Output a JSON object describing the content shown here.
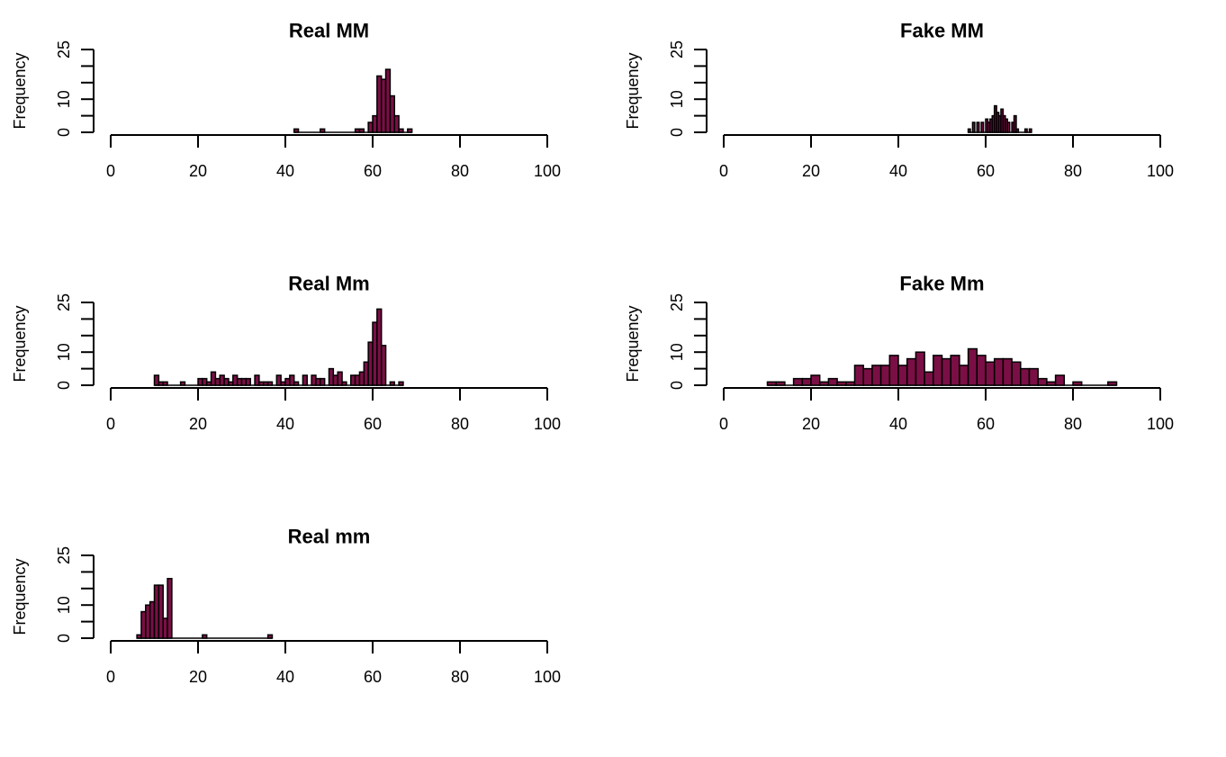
{
  "colors": {
    "bar_fill": "#7a0f45",
    "bar_stroke": "#000000",
    "axis": "#000000",
    "background": "#ffffff"
  },
  "chart_data": [
    {
      "type": "bar",
      "title": "Real MM",
      "ylabel": "Frequency",
      "xlim": [
        0,
        100
      ],
      "ylim": [
        0,
        25
      ],
      "xticks": [
        "0",
        "20",
        "40",
        "60",
        "80",
        "100"
      ],
      "yticks": [
        "0",
        "10",
        "25"
      ],
      "bin_width": 1,
      "bins": [
        {
          "x": 42,
          "y": 1
        },
        {
          "x": 48,
          "y": 1
        },
        {
          "x": 56,
          "y": 1
        },
        {
          "x": 57,
          "y": 1
        },
        {
          "x": 59,
          "y": 3
        },
        {
          "x": 60,
          "y": 5
        },
        {
          "x": 61,
          "y": 17
        },
        {
          "x": 62,
          "y": 16
        },
        {
          "x": 63,
          "y": 19
        },
        {
          "x": 64,
          "y": 11
        },
        {
          "x": 65,
          "y": 5
        },
        {
          "x": 66,
          "y": 1
        },
        {
          "x": 68,
          "y": 1
        }
      ]
    },
    {
      "type": "bar",
      "title": "Fake MM",
      "ylabel": "Frequency",
      "xlim": [
        0,
        100
      ],
      "ylim": [
        0,
        25
      ],
      "xticks": [
        "0",
        "20",
        "40",
        "60",
        "80",
        "100"
      ],
      "yticks": [
        "0",
        "10",
        "25"
      ],
      "bin_width": 0.5,
      "bins": [
        {
          "x": 56,
          "y": 1
        },
        {
          "x": 57,
          "y": 3
        },
        {
          "x": 58,
          "y": 3
        },
        {
          "x": 59,
          "y": 3
        },
        {
          "x": 60,
          "y": 4
        },
        {
          "x": 60.5,
          "y": 3
        },
        {
          "x": 61,
          "y": 4
        },
        {
          "x": 61.5,
          "y": 5
        },
        {
          "x": 62,
          "y": 8
        },
        {
          "x": 62.5,
          "y": 6
        },
        {
          "x": 63,
          "y": 5
        },
        {
          "x": 63.5,
          "y": 7
        },
        {
          "x": 64,
          "y": 5
        },
        {
          "x": 64.5,
          "y": 4
        },
        {
          "x": 65,
          "y": 3
        },
        {
          "x": 66,
          "y": 3
        },
        {
          "x": 66.5,
          "y": 5
        },
        {
          "x": 67,
          "y": 1
        },
        {
          "x": 69,
          "y": 1
        },
        {
          "x": 70,
          "y": 1
        }
      ]
    },
    {
      "type": "bar",
      "title": "Real Mm",
      "ylabel": "Frequency",
      "xlim": [
        0,
        100
      ],
      "ylim": [
        0,
        25
      ],
      "xticks": [
        "0",
        "20",
        "40",
        "60",
        "80",
        "100"
      ],
      "yticks": [
        "0",
        "10",
        "25"
      ],
      "bin_width": 1,
      "bins": [
        {
          "x": 10,
          "y": 3
        },
        {
          "x": 11,
          "y": 1
        },
        {
          "x": 12,
          "y": 1
        },
        {
          "x": 16,
          "y": 1
        },
        {
          "x": 20,
          "y": 2
        },
        {
          "x": 21,
          "y": 2
        },
        {
          "x": 22,
          "y": 1
        },
        {
          "x": 23,
          "y": 4
        },
        {
          "x": 24,
          "y": 2
        },
        {
          "x": 25,
          "y": 3
        },
        {
          "x": 26,
          "y": 2
        },
        {
          "x": 27,
          "y": 1
        },
        {
          "x": 28,
          "y": 3
        },
        {
          "x": 29,
          "y": 2
        },
        {
          "x": 30,
          "y": 2
        },
        {
          "x": 31,
          "y": 2
        },
        {
          "x": 33,
          "y": 3
        },
        {
          "x": 34,
          "y": 1
        },
        {
          "x": 35,
          "y": 1
        },
        {
          "x": 36,
          "y": 1
        },
        {
          "x": 38,
          "y": 3
        },
        {
          "x": 39,
          "y": 1
        },
        {
          "x": 40,
          "y": 2
        },
        {
          "x": 41,
          "y": 3
        },
        {
          "x": 42,
          "y": 1
        },
        {
          "x": 44,
          "y": 3
        },
        {
          "x": 46,
          "y": 3
        },
        {
          "x": 47,
          "y": 2
        },
        {
          "x": 48,
          "y": 2
        },
        {
          "x": 50,
          "y": 5
        },
        {
          "x": 51,
          "y": 3
        },
        {
          "x": 52,
          "y": 4
        },
        {
          "x": 53,
          "y": 1
        },
        {
          "x": 55,
          "y": 3
        },
        {
          "x": 56,
          "y": 3
        },
        {
          "x": 57,
          "y": 4
        },
        {
          "x": 58,
          "y": 7
        },
        {
          "x": 59,
          "y": 13
        },
        {
          "x": 60,
          "y": 19
        },
        {
          "x": 61,
          "y": 23
        },
        {
          "x": 62,
          "y": 12
        },
        {
          "x": 64,
          "y": 1
        },
        {
          "x": 66,
          "y": 1
        }
      ]
    },
    {
      "type": "bar",
      "title": "Fake Mm",
      "ylabel": "Frequency",
      "xlim": [
        0,
        100
      ],
      "ylim": [
        0,
        25
      ],
      "xticks": [
        "0",
        "20",
        "40",
        "60",
        "80",
        "100"
      ],
      "yticks": [
        "0",
        "10",
        "25"
      ],
      "bin_width": 2,
      "bins": [
        {
          "x": 10,
          "y": 1
        },
        {
          "x": 12,
          "y": 1
        },
        {
          "x": 16,
          "y": 2
        },
        {
          "x": 18,
          "y": 2
        },
        {
          "x": 20,
          "y": 3
        },
        {
          "x": 22,
          "y": 1
        },
        {
          "x": 24,
          "y": 2
        },
        {
          "x": 26,
          "y": 1
        },
        {
          "x": 28,
          "y": 1
        },
        {
          "x": 30,
          "y": 6
        },
        {
          "x": 32,
          "y": 5
        },
        {
          "x": 34,
          "y": 6
        },
        {
          "x": 36,
          "y": 6
        },
        {
          "x": 38,
          "y": 9
        },
        {
          "x": 40,
          "y": 6
        },
        {
          "x": 42,
          "y": 8
        },
        {
          "x": 44,
          "y": 10
        },
        {
          "x": 46,
          "y": 4
        },
        {
          "x": 48,
          "y": 9
        },
        {
          "x": 50,
          "y": 8
        },
        {
          "x": 52,
          "y": 9
        },
        {
          "x": 54,
          "y": 6
        },
        {
          "x": 56,
          "y": 11
        },
        {
          "x": 58,
          "y": 9
        },
        {
          "x": 60,
          "y": 7
        },
        {
          "x": 62,
          "y": 8
        },
        {
          "x": 64,
          "y": 8
        },
        {
          "x": 66,
          "y": 7
        },
        {
          "x": 68,
          "y": 5
        },
        {
          "x": 70,
          "y": 5
        },
        {
          "x": 72,
          "y": 2
        },
        {
          "x": 74,
          "y": 1
        },
        {
          "x": 76,
          "y": 3
        },
        {
          "x": 80,
          "y": 1
        },
        {
          "x": 88,
          "y": 1
        }
      ]
    },
    {
      "type": "bar",
      "title": "Real mm",
      "ylabel": "Frequency",
      "xlim": [
        0,
        100
      ],
      "ylim": [
        0,
        25
      ],
      "xticks": [
        "0",
        "20",
        "40",
        "60",
        "80",
        "100"
      ],
      "yticks": [
        "0",
        "10",
        "25"
      ],
      "bin_width": 1,
      "bins": [
        {
          "x": 6,
          "y": 1
        },
        {
          "x": 7,
          "y": 8
        },
        {
          "x": 8,
          "y": 10
        },
        {
          "x": 9,
          "y": 11
        },
        {
          "x": 10,
          "y": 16
        },
        {
          "x": 11,
          "y": 16
        },
        {
          "x": 12,
          "y": 6
        },
        {
          "x": 13,
          "y": 18
        },
        {
          "x": 21,
          "y": 1
        },
        {
          "x": 36,
          "y": 1
        }
      ]
    }
  ]
}
